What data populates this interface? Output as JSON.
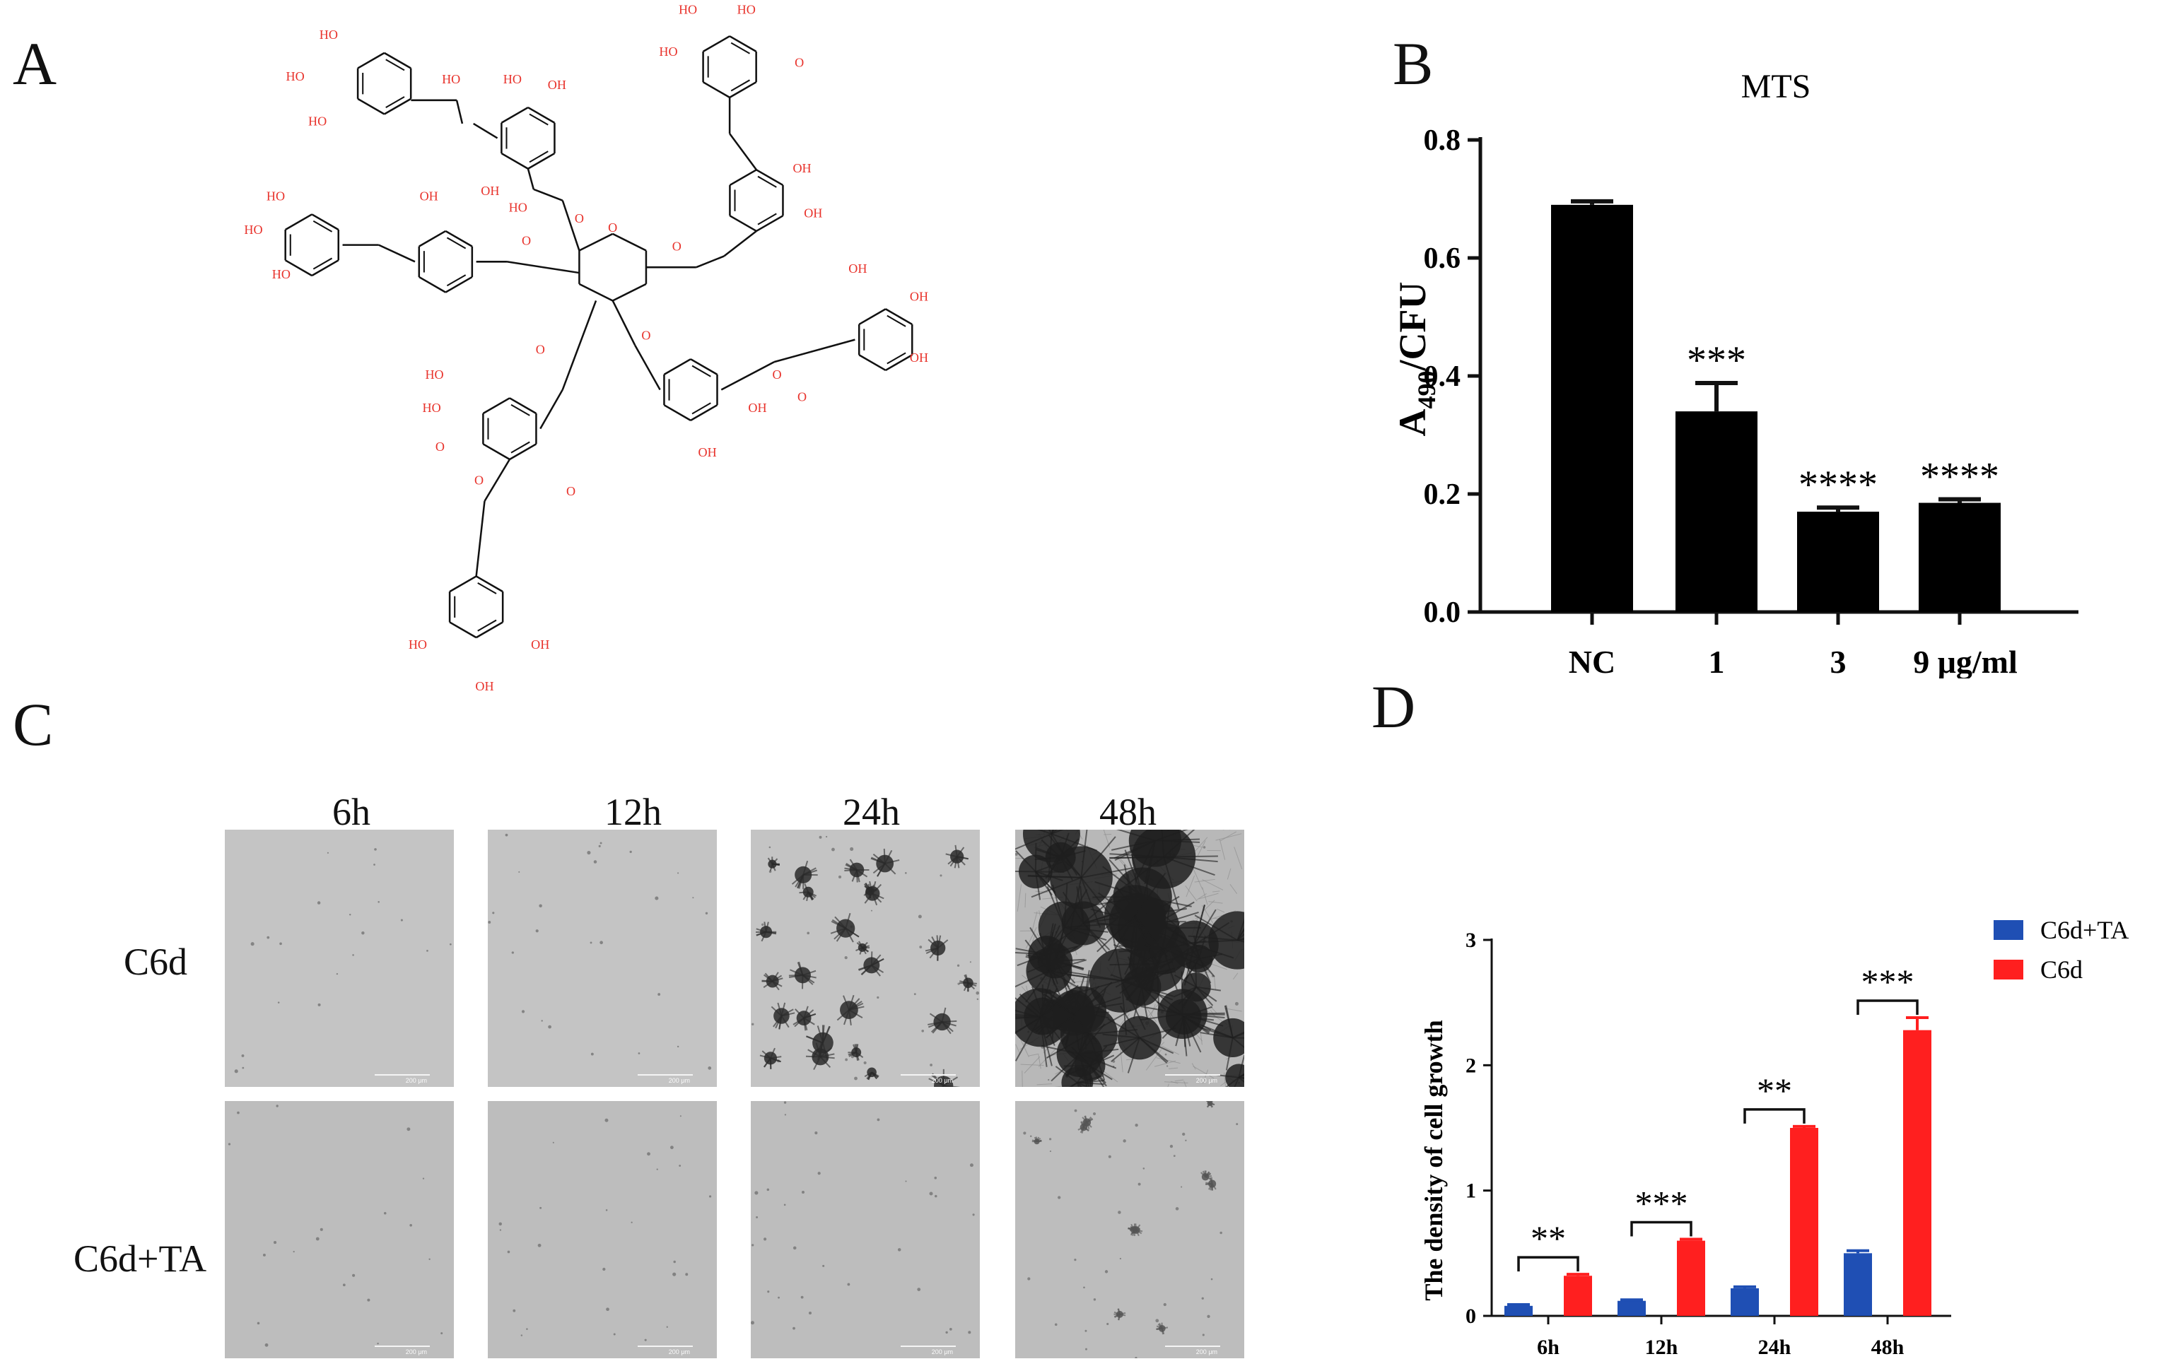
{
  "panels": {
    "A": "A",
    "B": "B",
    "C": "C",
    "D": "D"
  },
  "molecule": {
    "labels": [
      "HO",
      "HO",
      "HO",
      "HO",
      "HO",
      "HO",
      "HO",
      "HO",
      "HO",
      "HO",
      "HO",
      "HO",
      "HO",
      "HO",
      "HO",
      "HO",
      "HO",
      "HO",
      "HO",
      "HO",
      "HO",
      "HO",
      "HO",
      "HO",
      "HO",
      "HO"
    ],
    "O": "O",
    "OH": "OH",
    "HO": "HO",
    "color_hetero": "#e8322b",
    "color_bond": "#111111"
  },
  "microscopy": {
    "columns": [
      "6h",
      "12h",
      "24h",
      "48h"
    ],
    "rows": [
      "C6d",
      "C6d+TA"
    ],
    "scale_label": "200 μm"
  },
  "chart_data": [
    {
      "type": "bar",
      "title": "MTS",
      "ylabel_main": "A",
      "ylabel_sub": "490",
      "ylabel_rest": "/CFU",
      "categories": [
        "NC",
        "1",
        "3",
        "9 μg/ml"
      ],
      "values": [
        0.69,
        0.34,
        0.17,
        0.185
      ],
      "errors": [
        0.006,
        0.048,
        0.007,
        0.006
      ],
      "significance": [
        "",
        "***",
        "****",
        "****"
      ],
      "ylim": [
        0,
        0.8
      ],
      "yticks": [
        "0.0",
        "0.2",
        "0.4",
        "0.6",
        "0.8"
      ],
      "bar_color": "#000000"
    },
    {
      "type": "bar",
      "ylabel": "The  density of cell growth",
      "categories": [
        "6h",
        "12h",
        "24h",
        "48h"
      ],
      "series": [
        {
          "name": "C6d+TA",
          "values": [
            0.08,
            0.12,
            0.22,
            0.5
          ],
          "errors": [
            0.01,
            0.008,
            0.012,
            0.02
          ],
          "color": "#1f4fb4"
        },
        {
          "name": "C6d",
          "values": [
            0.32,
            0.6,
            1.5,
            2.28
          ],
          "errors": [
            0.012,
            0.012,
            0.012,
            0.1
          ],
          "color": "#ff1f1f"
        }
      ],
      "significance": [
        "**",
        "***",
        "**",
        "***"
      ],
      "ylim": [
        0,
        3
      ],
      "yticks": [
        "0",
        "1",
        "2",
        "3"
      ]
    }
  ]
}
